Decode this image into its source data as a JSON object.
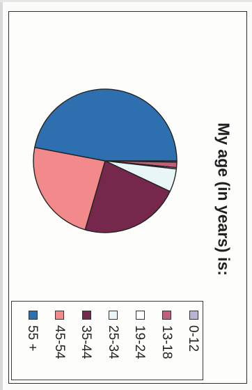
{
  "chart_data": {
    "type": "pie",
    "title": "My age (in years) is:",
    "categories": [
      "0-12",
      "13-18",
      "19-24",
      "25-34",
      "35-44",
      "45-54",
      "55 +"
    ],
    "values": [
      0.3,
      1.2,
      0.3,
      5.2,
      22.5,
      23.5,
      47.0
    ],
    "colors": [
      "#b8b4d8",
      "#c0607a",
      "#ffffff",
      "#e8f6f8",
      "#75284c",
      "#f2898a",
      "#2d6faf"
    ],
    "legend": "bottom",
    "grid": false
  }
}
